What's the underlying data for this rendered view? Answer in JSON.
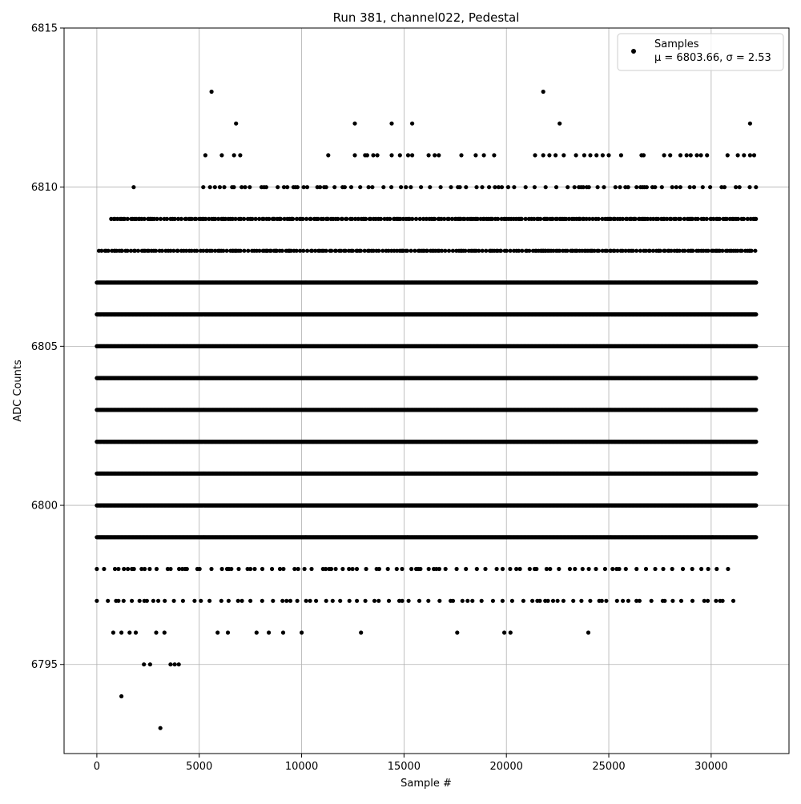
{
  "chart_data": {
    "type": "scatter",
    "title": "Run 381, channel022, Pedestal",
    "xlabel": "Sample #",
    "ylabel": "ADC Counts",
    "xlim": [
      -1600,
      33800
    ],
    "ylim": [
      6792.2,
      6815.0
    ],
    "x_ticks": [
      0,
      5000,
      10000,
      15000,
      20000,
      25000,
      30000
    ],
    "y_ticks": [
      6795,
      6800,
      6805,
      6810,
      6815
    ],
    "grid": true,
    "legend": {
      "placement": "top-right",
      "entries": [
        {
          "label": "Samples",
          "sublabel": "μ = 6803.66, σ = 2.53"
        }
      ]
    },
    "series": [
      {
        "name": "Samples",
        "color": "#000000",
        "marker": "circle",
        "x_range": [
          0,
          32200
        ],
        "levels": [
          {
            "y": 6799,
            "density": "dense",
            "x_range": [
              0,
              32200
            ]
          },
          {
            "y": 6800,
            "density": "dense",
            "x_range": [
              0,
              32200
            ]
          },
          {
            "y": 6801,
            "density": "dense",
            "x_range": [
              0,
              32200
            ]
          },
          {
            "y": 6802,
            "density": "dense",
            "x_range": [
              0,
              32200
            ]
          },
          {
            "y": 6803,
            "density": "dense",
            "x_range": [
              0,
              32200
            ]
          },
          {
            "y": 6804,
            "density": "dense",
            "x_range": [
              0,
              32200
            ]
          },
          {
            "y": 6805,
            "density": "dense",
            "x_range": [
              0,
              32200
            ]
          },
          {
            "y": 6806,
            "density": "dense",
            "x_range": [
              0,
              32200
            ]
          },
          {
            "y": 6807,
            "density": "dense",
            "x_range": [
              0,
              32200
            ]
          },
          {
            "y": 6808,
            "density": "medium",
            "x_range": [
              100,
              32200
            ]
          },
          {
            "y": 6809,
            "density": "medium",
            "x_range": [
              700,
              32200
            ]
          },
          {
            "y": 6810,
            "density": "sparse",
            "x_range": [
              5200,
              32200
            ]
          },
          {
            "y": 6798,
            "density": "sparse",
            "x_range": [
              0,
              31000
            ]
          },
          {
            "y": 6797,
            "density": "sparse",
            "x_range": [
              0,
              31300
            ]
          }
        ],
        "points": [
          [
            1800,
            6810
          ],
          [
            9300,
            6810
          ],
          [
            9800,
            6810
          ],
          [
            10100,
            6810
          ],
          [
            11200,
            6810
          ],
          [
            12000,
            6810
          ],
          [
            5300,
            6811
          ],
          [
            6100,
            6811
          ],
          [
            6700,
            6811
          ],
          [
            7000,
            6811
          ],
          [
            11300,
            6811
          ],
          [
            12600,
            6811
          ],
          [
            13100,
            6811
          ],
          [
            13200,
            6811
          ],
          [
            13500,
            6811
          ],
          [
            13700,
            6811
          ],
          [
            14400,
            6811
          ],
          [
            14800,
            6811
          ],
          [
            15200,
            6811
          ],
          [
            15400,
            6811
          ],
          [
            16200,
            6811
          ],
          [
            16500,
            6811
          ],
          [
            16700,
            6811
          ],
          [
            17800,
            6811
          ],
          [
            18500,
            6811
          ],
          [
            18900,
            6811
          ],
          [
            19400,
            6811
          ],
          [
            21400,
            6811
          ],
          [
            21800,
            6811
          ],
          [
            22100,
            6811
          ],
          [
            22400,
            6811
          ],
          [
            22800,
            6811
          ],
          [
            23400,
            6811
          ],
          [
            23800,
            6811
          ],
          [
            24100,
            6811
          ],
          [
            24400,
            6811
          ],
          [
            24700,
            6811
          ],
          [
            25000,
            6811
          ],
          [
            25600,
            6811
          ],
          [
            26600,
            6811
          ],
          [
            26700,
            6811
          ],
          [
            27700,
            6811
          ],
          [
            28000,
            6811
          ],
          [
            28500,
            6811
          ],
          [
            28800,
            6811
          ],
          [
            29000,
            6811
          ],
          [
            29300,
            6811
          ],
          [
            29500,
            6811
          ],
          [
            29800,
            6811
          ],
          [
            30800,
            6811
          ],
          [
            31300,
            6811
          ],
          [
            31600,
            6811
          ],
          [
            31900,
            6811
          ],
          [
            32100,
            6811
          ],
          [
            6800,
            6812
          ],
          [
            12600,
            6812
          ],
          [
            14400,
            6812
          ],
          [
            15400,
            6812
          ],
          [
            22600,
            6812
          ],
          [
            31900,
            6812
          ],
          [
            5600,
            6813
          ],
          [
            21800,
            6813
          ],
          [
            800,
            6796
          ],
          [
            1200,
            6796
          ],
          [
            1600,
            6796
          ],
          [
            1900,
            6796
          ],
          [
            2900,
            6796
          ],
          [
            3300,
            6796
          ],
          [
            5900,
            6796
          ],
          [
            6400,
            6796
          ],
          [
            7800,
            6796
          ],
          [
            8400,
            6796
          ],
          [
            9100,
            6796
          ],
          [
            10000,
            6796
          ],
          [
            12900,
            6796
          ],
          [
            17600,
            6796
          ],
          [
            19900,
            6796
          ],
          [
            20200,
            6796
          ],
          [
            24000,
            6796
          ],
          [
            2300,
            6795
          ],
          [
            2600,
            6795
          ],
          [
            3600,
            6795
          ],
          [
            3800,
            6795
          ],
          [
            4000,
            6795
          ],
          [
            1200,
            6794
          ],
          [
            3100,
            6793
          ]
        ]
      }
    ]
  }
}
